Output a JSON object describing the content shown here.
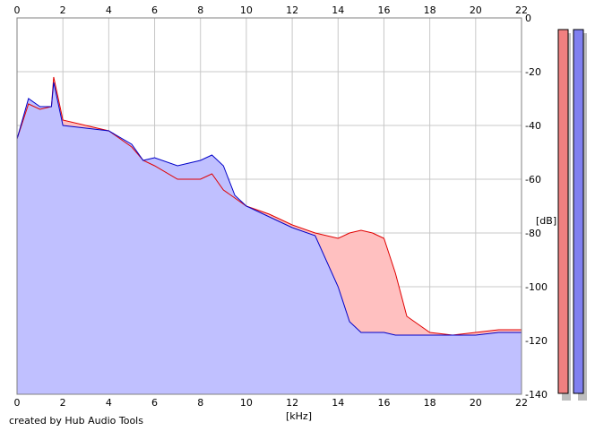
{
  "credit": "created by Hub Audio Tools",
  "chart_data": {
    "type": "area",
    "xlabel": "[kHz]",
    "ylabel": "[dB]",
    "xlim": [
      0,
      22
    ],
    "ylim": [
      -140,
      0
    ],
    "x_ticks": [
      "0",
      "2",
      "4",
      "6",
      "8",
      "10",
      "12",
      "14",
      "16",
      "18",
      "20",
      "22"
    ],
    "y_ticks": [
      "0",
      "-20",
      "-40",
      "-60",
      "-80",
      "-100",
      "-120",
      "-140"
    ],
    "grid": true,
    "colors": {
      "red_line": "#e00000",
      "red_fill": "#ffc0c0",
      "blue_line": "#0000c8",
      "blue_fill": "#c0c0ff",
      "meter_red": "#f08080",
      "meter_blue": "#8080f0"
    },
    "series": [
      {
        "color": "red",
        "x": [
          0,
          0.5,
          1,
          1.5,
          1.6,
          2,
          3,
          4,
          5,
          5.5,
          6,
          7,
          8,
          8.5,
          9,
          9.5,
          10,
          11,
          12,
          13,
          14,
          14.5,
          15,
          15.5,
          16,
          16.5,
          17,
          18,
          19,
          20,
          21,
          22
        ],
        "values": [
          -45,
          -32,
          -34,
          -33,
          -22,
          -38,
          -40,
          -42,
          -48,
          -53,
          -55,
          -60,
          -60,
          -58,
          -64,
          -67,
          -70,
          -73,
          -77,
          -80,
          -82,
          -80,
          -79,
          -80,
          -82,
          -95,
          -111,
          -117,
          -118,
          -117,
          -116,
          -116
        ]
      },
      {
        "color": "blue",
        "x": [
          0,
          0.5,
          1,
          1.5,
          1.6,
          2,
          3,
          4,
          5,
          5.5,
          6,
          7,
          8,
          8.5,
          9,
          9.5,
          10,
          11,
          12,
          13,
          14,
          14.5,
          15,
          15.5,
          16,
          16.5,
          17,
          18,
          19,
          20,
          21,
          22
        ],
        "values": [
          -45,
          -30,
          -33,
          -33,
          -24,
          -40,
          -41,
          -42,
          -47,
          -53,
          -52,
          -55,
          -53,
          -51,
          -55,
          -66,
          -70,
          -74,
          -78,
          -81,
          -100,
          -113,
          -117,
          -117,
          -117,
          -118,
          -118,
          -118,
          -118,
          -118,
          -117,
          -117
        ]
      }
    ]
  }
}
